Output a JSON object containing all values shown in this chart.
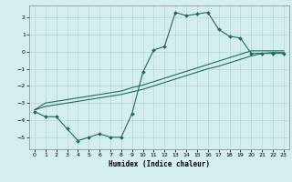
{
  "title": "",
  "xlabel": "Humidex (Indice chaleur)",
  "ylabel": "",
  "bg_color": "#d4eeee",
  "grid_color": "#b8d8d8",
  "line_color": "#1e6b5e",
  "xlim": [
    -0.5,
    23.5
  ],
  "ylim": [
    -5.7,
    2.7
  ],
  "xticks": [
    0,
    1,
    2,
    3,
    4,
    5,
    6,
    7,
    8,
    9,
    10,
    11,
    12,
    13,
    14,
    15,
    16,
    17,
    18,
    19,
    20,
    21,
    22,
    23
  ],
  "yticks": [
    -5,
    -4,
    -3,
    -2,
    -1,
    0,
    1,
    2
  ],
  "line1_x": [
    0,
    1,
    2,
    3,
    4,
    5,
    6,
    7,
    8,
    9,
    10,
    11,
    12,
    13,
    14,
    15,
    16,
    17,
    18,
    19,
    20,
    21,
    22,
    23
  ],
  "line1_y": [
    -3.5,
    -3.8,
    -3.8,
    -4.5,
    -5.2,
    -5.0,
    -4.8,
    -5.0,
    -5.0,
    -3.6,
    -1.2,
    0.1,
    0.3,
    2.3,
    2.1,
    2.2,
    2.3,
    1.3,
    0.9,
    0.8,
    -0.1,
    -0.1,
    -0.1,
    -0.1
  ],
  "line2_x": [
    0,
    1,
    2,
    3,
    4,
    5,
    6,
    7,
    8,
    9,
    10,
    11,
    12,
    13,
    14,
    15,
    16,
    17,
    18,
    19,
    20,
    21,
    22,
    23
  ],
  "line2_y": [
    -3.4,
    -3.2,
    -3.1,
    -3.0,
    -2.9,
    -2.8,
    -2.7,
    -2.6,
    -2.5,
    -2.35,
    -2.2,
    -2.0,
    -1.8,
    -1.6,
    -1.4,
    -1.2,
    -1.0,
    -0.85,
    -0.65,
    -0.45,
    -0.25,
    -0.1,
    -0.05,
    -0.05
  ],
  "line3_x": [
    0,
    1,
    2,
    3,
    4,
    5,
    6,
    7,
    8,
    9,
    10,
    11,
    12,
    13,
    14,
    15,
    16,
    17,
    18,
    19,
    20,
    21,
    22,
    23
  ],
  "line3_y": [
    -3.4,
    -3.0,
    -2.9,
    -2.8,
    -2.7,
    -2.6,
    -2.5,
    -2.4,
    -2.3,
    -2.1,
    -1.95,
    -1.75,
    -1.55,
    -1.35,
    -1.15,
    -0.95,
    -0.75,
    -0.55,
    -0.35,
    -0.15,
    0.05,
    0.05,
    0.05,
    0.05
  ]
}
